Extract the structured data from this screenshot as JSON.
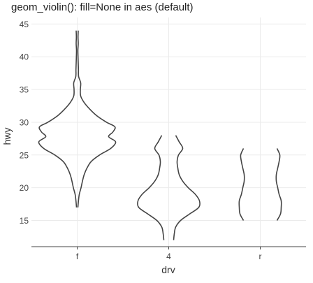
{
  "chart_data": {
    "type": "violin",
    "title": "geom_violin(): fill=None in aes (default)",
    "xlabel": "drv",
    "ylabel": "hwy",
    "categories": [
      "f",
      "4",
      "r"
    ],
    "ylim": [
      11,
      46
    ],
    "y_ticks": [
      15,
      20,
      25,
      30,
      35,
      40,
      45
    ],
    "grid": true,
    "fill": "none",
    "outline_color": "#444444",
    "violins": [
      {
        "category": "f",
        "profile": [
          {
            "y": 17,
            "w": 0.1
          },
          {
            "y": 18,
            "w": 0.18
          },
          {
            "y": 19,
            "w": 0.3
          },
          {
            "y": 20,
            "w": 0.55
          },
          {
            "y": 21,
            "w": 0.75
          },
          {
            "y": 22,
            "w": 1.0
          },
          {
            "y": 23,
            "w": 1.4
          },
          {
            "y": 24,
            "w": 2.0
          },
          {
            "y": 25,
            "w": 3.2
          },
          {
            "y": 26,
            "w": 4.8
          },
          {
            "y": 27,
            "w": 5.5
          },
          {
            "y": 27.8,
            "w": 4.5
          },
          {
            "y": 28.5,
            "w": 5.1
          },
          {
            "y": 29.3,
            "w": 5.4
          },
          {
            "y": 30,
            "w": 4.2
          },
          {
            "y": 31,
            "w": 2.8
          },
          {
            "y": 32,
            "w": 1.8
          },
          {
            "y": 33,
            "w": 1.0
          },
          {
            "y": 34,
            "w": 0.5
          },
          {
            "y": 35,
            "w": 0.45
          },
          {
            "y": 36,
            "w": 0.5
          },
          {
            "y": 37,
            "w": 0.2
          },
          {
            "y": 38,
            "w": 0.18
          },
          {
            "y": 39,
            "w": 0.15
          },
          {
            "y": 40,
            "w": 0.12
          },
          {
            "y": 41,
            "w": 0.1
          },
          {
            "y": 42,
            "w": 0.15
          },
          {
            "y": 43,
            "w": 0.12
          },
          {
            "y": 44,
            "w": 0.15
          }
        ]
      },
      {
        "category": "4",
        "profile": [
          {
            "y": 12,
            "w": 0.7
          },
          {
            "y": 13,
            "w": 0.8
          },
          {
            "y": 14,
            "w": 1.0
          },
          {
            "y": 15,
            "w": 1.7
          },
          {
            "y": 16,
            "w": 3.0
          },
          {
            "y": 17,
            "w": 4.3
          },
          {
            "y": 18,
            "w": 4.4
          },
          {
            "y": 19,
            "w": 3.8
          },
          {
            "y": 20,
            "w": 2.8
          },
          {
            "y": 21,
            "w": 2.0
          },
          {
            "y": 22,
            "w": 1.5
          },
          {
            "y": 23,
            "w": 1.3
          },
          {
            "y": 24,
            "w": 1.2
          },
          {
            "y": 25,
            "w": 1.4
          },
          {
            "y": 26,
            "w": 2.0
          },
          {
            "y": 27,
            "w": 1.5
          },
          {
            "y": 28,
            "w": 1.0
          }
        ]
      },
      {
        "category": "r",
        "profile": [
          {
            "y": 15,
            "w": 2.4
          },
          {
            "y": 16,
            "w": 2.9
          },
          {
            "y": 17,
            "w": 3.0
          },
          {
            "y": 18,
            "w": 3.0
          },
          {
            "y": 19,
            "w": 2.7
          },
          {
            "y": 20,
            "w": 2.5
          },
          {
            "y": 21,
            "w": 2.3
          },
          {
            "y": 22,
            "w": 2.3
          },
          {
            "y": 23,
            "w": 2.5
          },
          {
            "y": 24,
            "w": 2.7
          },
          {
            "y": 25,
            "w": 2.8
          },
          {
            "y": 26,
            "w": 2.4
          }
        ]
      }
    ]
  }
}
